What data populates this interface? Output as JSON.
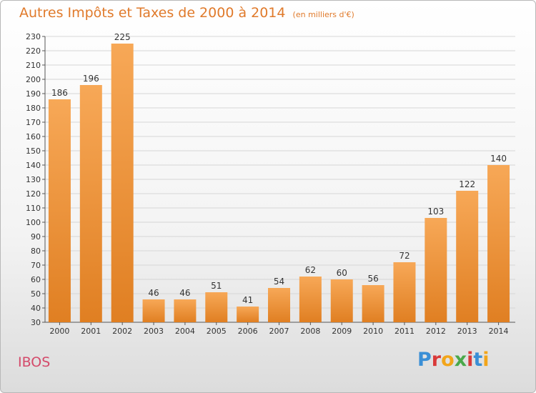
{
  "header": {
    "title": "Autres Impôts et Taxes de 2000 à 2014",
    "subtitle": "(en milliers d'€)"
  },
  "footer": {
    "town": "IBOS",
    "brand": "Proxiti",
    "brand_colors": [
      "#3a8fd6",
      "#d93a3a",
      "#f2a51a",
      "#4aa84a",
      "#d93a3a",
      "#3a8fd6",
      "#f2a51a"
    ]
  },
  "colors": {
    "bar_top": "#f7a857",
    "bar_bottom": "#e07f22",
    "grid": "#d6d6d6"
  },
  "chart_data": {
    "type": "bar",
    "categories": [
      "2000",
      "2001",
      "2002",
      "2003",
      "2004",
      "2005",
      "2006",
      "2007",
      "2008",
      "2009",
      "2010",
      "2011",
      "2012",
      "2013",
      "2014"
    ],
    "values": [
      186,
      196,
      225,
      46,
      46,
      51,
      41,
      54,
      62,
      60,
      56,
      72,
      103,
      122,
      140
    ],
    "title": "Autres Impôts et Taxes de 2000 à 2014",
    "subtitle": "(en milliers d'€)",
    "ylim": [
      30,
      230
    ],
    "yticks": [
      30,
      40,
      50,
      60,
      70,
      80,
      90,
      100,
      110,
      120,
      130,
      140,
      150,
      160,
      170,
      180,
      190,
      200,
      210,
      220,
      230
    ],
    "grid": true,
    "legend": "none"
  }
}
